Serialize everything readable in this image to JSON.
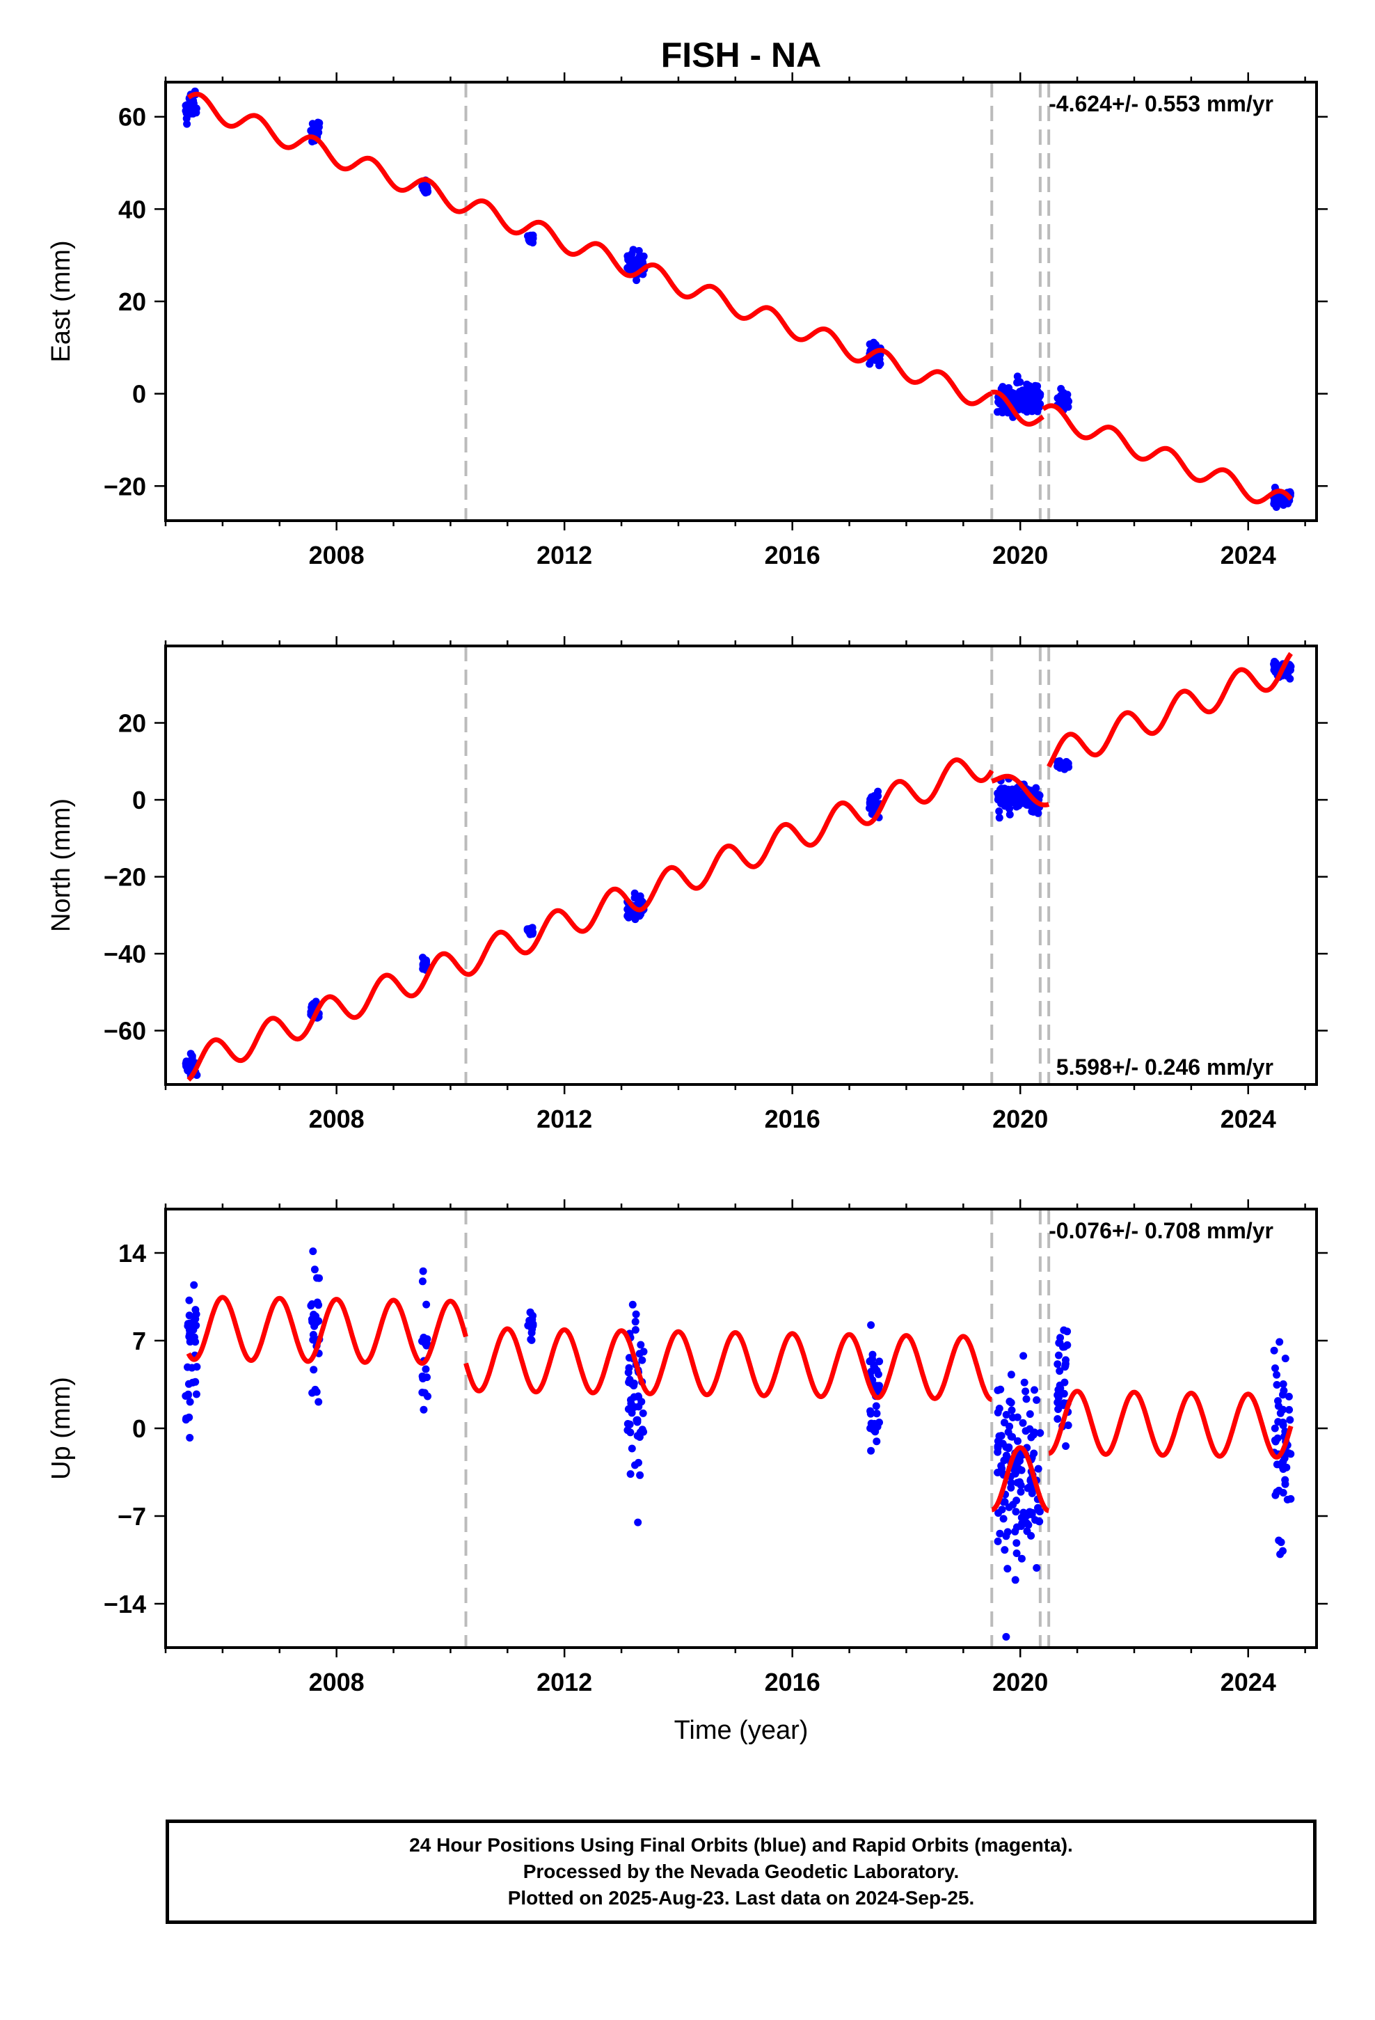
{
  "figure": {
    "title": "FISH - NA",
    "xlabel": "Time (year)"
  },
  "caption": {
    "line1": "24 Hour Positions Using Final Orbits (blue) and Rapid Orbits (magenta).",
    "line2": "Processed by the Nevada Geodetic Laboratory.",
    "line3": "Plotted on 2025-Aug-23. Last data on 2024-Sep-25."
  },
  "colors": {
    "data": "#0000ff",
    "model": "#ff0000",
    "steps": "#bbbbbb",
    "axes": "#000000"
  },
  "chart_data": [
    {
      "type": "scatter",
      "name": "east",
      "ylabel": "East (mm)",
      "rate_label": "-4.624+/- 0.553 mm/yr",
      "rate_position": "top-right",
      "xlim": [
        2005.0,
        2025.2
      ],
      "ylim": [
        -27.5,
        67.5
      ],
      "yticks": [
        -20,
        0,
        20,
        40,
        60
      ],
      "xticks": [
        2008,
        2012,
        2016,
        2020,
        2024
      ],
      "step_epochs": [
        2010.27,
        2019.5,
        2020.35,
        2020.5
      ],
      "model": {
        "segments": [
          {
            "t0": 2005.4,
            "t1": 2019.5,
            "v0": 63.5,
            "rate": -4.624,
            "amp": 2.2,
            "phase": 0.35
          },
          {
            "t0": 2019.5,
            "t1": 2020.4,
            "v0": -1.5,
            "rate": -4.624,
            "amp": 2.2,
            "phase": 0.35
          },
          {
            "t0": 2020.4,
            "t1": 2024.75,
            "v0": -4.0,
            "rate": -4.624,
            "amp": 2.2,
            "phase": 0.35
          }
        ]
      },
      "clusters": [
        {
          "t0": 2005.35,
          "t1": 2005.55,
          "c": 62.0,
          "s": 2.5
        },
        {
          "t0": 2007.55,
          "t1": 2007.7,
          "c": 57.0,
          "s": 1.8
        },
        {
          "t0": 2009.5,
          "t1": 2009.6,
          "c": 44.5,
          "s": 1.2
        },
        {
          "t0": 2011.35,
          "t1": 2011.45,
          "c": 33.5,
          "s": 0.8
        },
        {
          "t0": 2013.1,
          "t1": 2013.4,
          "c": 28.0,
          "s": 1.8
        },
        {
          "t0": 2017.35,
          "t1": 2017.55,
          "c": 9.0,
          "s": 2.2
        },
        {
          "t0": 2019.6,
          "t1": 2020.35,
          "c": -1.0,
          "s": 2.5
        },
        {
          "t0": 2020.65,
          "t1": 2020.85,
          "c": -1.5,
          "s": 1.5
        },
        {
          "t0": 2024.45,
          "t1": 2024.75,
          "c": -22.5,
          "s": 1.5
        }
      ]
    },
    {
      "type": "scatter",
      "name": "north",
      "ylabel": "North (mm)",
      "rate_label": "5.598+/- 0.246 mm/yr",
      "rate_position": "bottom-right",
      "xlim": [
        2005.0,
        2025.2
      ],
      "ylim": [
        -74,
        40
      ],
      "yticks": [
        -60,
        -40,
        -20,
        0,
        20
      ],
      "xticks": [
        2008,
        2012,
        2016,
        2020,
        2024
      ],
      "step_epochs": [
        2010.27,
        2019.5,
        2020.35,
        2020.5
      ],
      "model": {
        "segments": [
          {
            "t0": 2005.4,
            "t1": 2019.5,
            "v0": -69.0,
            "rate": 5.598,
            "amp": 4.0,
            "phase": 0.6
          },
          {
            "t0": 2019.5,
            "t1": 2020.5,
            "v0": 6.0,
            "rate": -6.0,
            "amp": 2.0,
            "phase": 0.6
          },
          {
            "t0": 2020.5,
            "t1": 2024.75,
            "v0": 11.0,
            "rate": 5.598,
            "amp": 4.0,
            "phase": 0.6
          }
        ]
      },
      "clusters": [
        {
          "t0": 2005.35,
          "t1": 2005.55,
          "c": -69.0,
          "s": 2.0
        },
        {
          "t0": 2007.55,
          "t1": 2007.7,
          "c": -55.0,
          "s": 1.5
        },
        {
          "t0": 2009.5,
          "t1": 2009.6,
          "c": -43.0,
          "s": 1.2
        },
        {
          "t0": 2011.35,
          "t1": 2011.45,
          "c": -34.0,
          "s": 0.8
        },
        {
          "t0": 2013.1,
          "t1": 2013.4,
          "c": -28.0,
          "s": 2.0
        },
        {
          "t0": 2017.35,
          "t1": 2017.55,
          "c": -1.0,
          "s": 2.0
        },
        {
          "t0": 2019.6,
          "t1": 2020.35,
          "c": 0.5,
          "s": 2.5
        },
        {
          "t0": 2020.65,
          "t1": 2020.85,
          "c": 9.0,
          "s": 1.0
        },
        {
          "t0": 2024.45,
          "t1": 2024.75,
          "c": 34.0,
          "s": 1.5
        }
      ]
    },
    {
      "type": "scatter",
      "name": "up",
      "ylabel": "Up (mm)",
      "rate_label": "-0.076+/- 0.708 mm/yr",
      "rate_position": "top-right",
      "xlim": [
        2005.0,
        2025.2
      ],
      "ylim": [
        -17.5,
        17.5
      ],
      "yticks": [
        -14,
        -7,
        0,
        7,
        14
      ],
      "xticks": [
        2008,
        2012,
        2016,
        2020,
        2024
      ],
      "step_epochs": [
        2010.27,
        2019.5,
        2020.35,
        2020.5
      ],
      "model": {
        "segments": [
          {
            "t0": 2005.4,
            "t1": 2010.27,
            "v0": 8.0,
            "rate": -0.076,
            "amp": 2.5,
            "phase": 0.75
          },
          {
            "t0": 2010.27,
            "t1": 2019.5,
            "v0": 5.5,
            "rate": -0.076,
            "amp": 2.5,
            "phase": 0.75
          },
          {
            "t0": 2019.5,
            "t1": 2020.5,
            "v0": -4.0,
            "rate": -0.076,
            "amp": 2.5,
            "phase": 0.75
          },
          {
            "t0": 2020.5,
            "t1": 2024.75,
            "v0": 0.5,
            "rate": -0.076,
            "amp": 2.5,
            "phase": 0.75
          }
        ]
      },
      "clusters": [
        {
          "t0": 2005.35,
          "t1": 2005.55,
          "c": 6.0,
          "s": 4.0
        },
        {
          "t0": 2007.55,
          "t1": 2007.7,
          "c": 8.0,
          "s": 3.5
        },
        {
          "t0": 2009.5,
          "t1": 2009.6,
          "c": 6.0,
          "s": 4.5
        },
        {
          "t0": 2011.35,
          "t1": 2011.45,
          "c": 8.5,
          "s": 0.8
        },
        {
          "t0": 2013.1,
          "t1": 2013.4,
          "c": 3.0,
          "s": 5.0
        },
        {
          "t0": 2017.35,
          "t1": 2017.55,
          "c": 3.0,
          "s": 3.0
        },
        {
          "t0": 2019.6,
          "t1": 2020.35,
          "c": -4.0,
          "s": 5.0
        },
        {
          "t0": 2020.65,
          "t1": 2020.85,
          "c": 3.0,
          "s": 3.0
        },
        {
          "t0": 2024.45,
          "t1": 2024.75,
          "c": -1.0,
          "s": 5.0
        }
      ]
    }
  ]
}
